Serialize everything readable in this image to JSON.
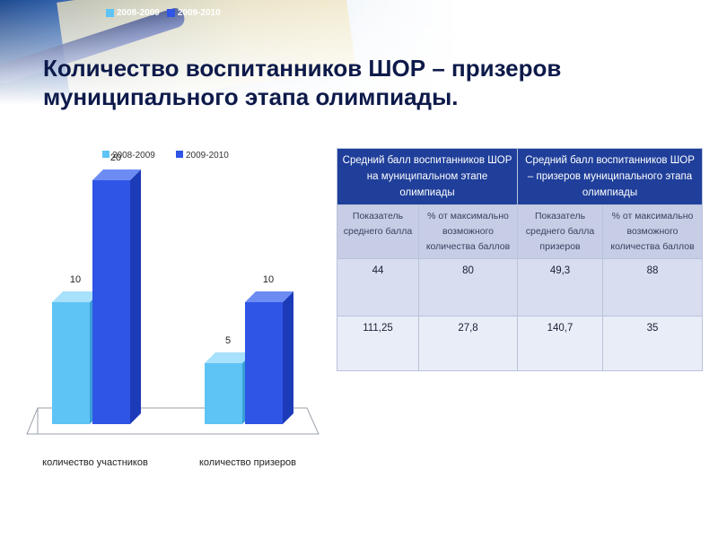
{
  "title": {
    "line1": "Количество воспитанников ШОР – призеров",
    "line2": "муниципального этапа олимпиады."
  },
  "colors": {
    "series_2008": "#5ec4f5",
    "series_2009": "#2f55e6",
    "title": "#0d1a4a",
    "table_header": "#1f3f9a"
  },
  "chart_data": {
    "type": "bar",
    "style": "3d",
    "categories": [
      "количество участников",
      "количество призеров"
    ],
    "series": [
      {
        "name": "2008-2009",
        "values": [
          10,
          5
        ]
      },
      {
        "name": "2009-2010",
        "values": [
          20,
          10
        ]
      }
    ],
    "ylim": [
      0,
      25
    ],
    "legend_position": "top",
    "grid": false
  },
  "table": {
    "headers": [
      "Средний балл воспитанников ШОР на муниципальном этапе олимпиады",
      "Средний балл воспитанников ШОР – призеров муниципального этапа олимпиады"
    ],
    "subheaders": [
      "Показатель среднего балла",
      "% от максимально возможного количества баллов",
      "Показатель среднего балла призеров",
      "% от максимально возможного количества баллов"
    ],
    "rows": [
      [
        "44",
        "80",
        "49,3",
        "88"
      ],
      [
        "111,25",
        "27,8",
        "140,7",
        "35"
      ]
    ]
  }
}
